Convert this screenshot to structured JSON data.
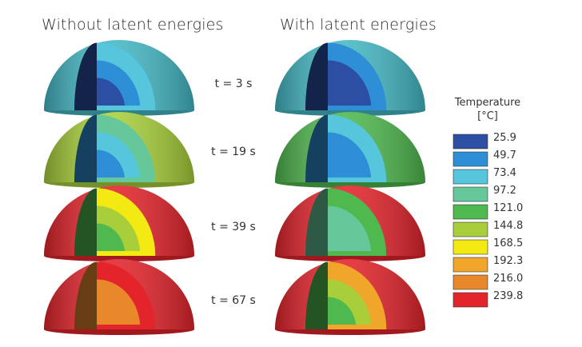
{
  "titles": {
    "left": "Without latent energies",
    "right": "With latent energies"
  },
  "times": [
    "t = 3 s",
    "t = 19 s",
    "t = 39 s",
    "t = 67 s"
  ],
  "legend": {
    "title_line1": "Temperature",
    "title_line2": "[°C]",
    "items": [
      {
        "value": "25.9",
        "color": "#2c4ea3"
      },
      {
        "value": "49.7",
        "color": "#2f8fd6"
      },
      {
        "value": "73.4",
        "color": "#56c6dc"
      },
      {
        "value": "97.2",
        "color": "#66c79a"
      },
      {
        "value": "121.0",
        "color": "#4fb84f"
      },
      {
        "value": "144.8",
        "color": "#a8cf3a"
      },
      {
        "value": "168.5",
        "color": "#f2ea12"
      },
      {
        "value": "192.3",
        "color": "#f0a62a"
      },
      {
        "value": "216.0",
        "color": "#e8882a"
      },
      {
        "value": "239.8",
        "color": "#e3242b"
      }
    ]
  },
  "domes": {
    "without": [
      {
        "outer": "#44b8c4",
        "rings": [
          "#56c6dc",
          "#2f8fd6",
          "#2c4ea3"
        ]
      },
      {
        "outer": "#a8cf3a",
        "rings": [
          "#66c79a",
          "#56c6dc",
          "#2f8fd6"
        ]
      },
      {
        "outer": "#e3242b",
        "rings": [
          "#f2ea12",
          "#a8cf3a",
          "#4fb84f"
        ]
      },
      {
        "outer": "#e3242b",
        "rings": [
          "#e3242b",
          "#e8882a"
        ]
      }
    ],
    "with": [
      {
        "outer": "#44b8c4",
        "rings": [
          "#2f8fd6",
          "#2c4ea3"
        ]
      },
      {
        "outer": "#4fb84f",
        "rings": [
          "#56c6dc",
          "#2f8fd6"
        ]
      },
      {
        "outer": "#e3242b",
        "rings": [
          "#4fb84f",
          "#66c79a"
        ]
      },
      {
        "outer": "#e3242b",
        "rings": [
          "#f0a62a",
          "#a8cf3a",
          "#4fb84f"
        ]
      }
    ]
  }
}
